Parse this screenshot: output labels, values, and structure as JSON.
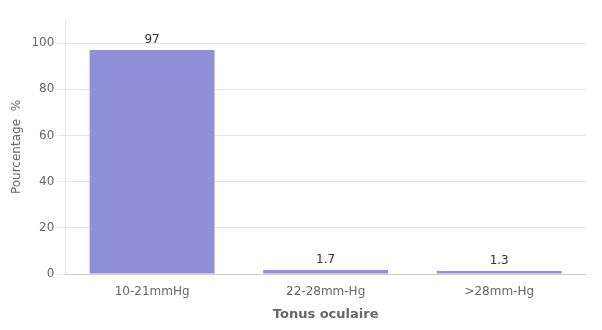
{
  "chart_data": {
    "type": "bar",
    "categories": [
      "10-21mmHg",
      "22-28mm-Hg",
      ">28mm-Hg"
    ],
    "values": [
      97,
      1.7,
      1.3
    ],
    "color": "#9090d8",
    "xlabel": "Tonus oculaire",
    "ylabel": "Pourcentage  %",
    "ylim": [
      0,
      110
    ],
    "yticks": [
      0,
      20,
      40,
      60,
      80,
      100
    ],
    "grid": true,
    "data_labels": true
  }
}
